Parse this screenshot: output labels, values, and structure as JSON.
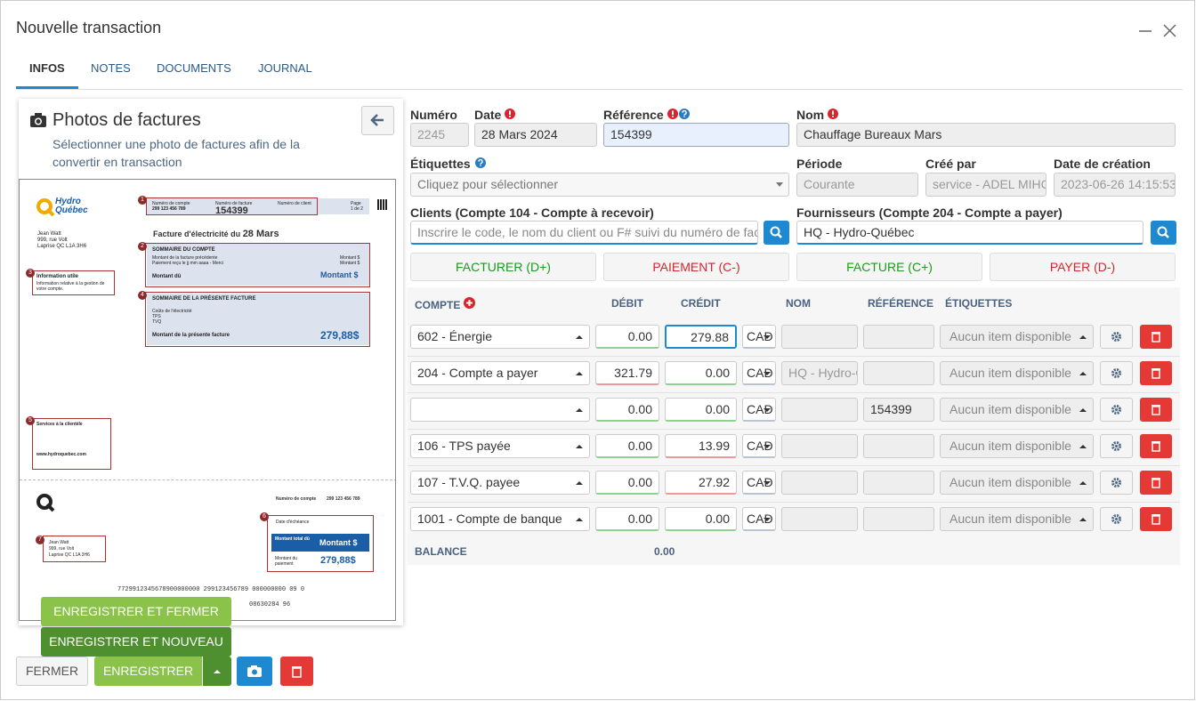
{
  "header": {
    "title": "Nouvelle transaction"
  },
  "tabs": [
    "INFOS",
    "NOTES",
    "DOCUMENTS",
    "JOURNAL"
  ],
  "photo_panel": {
    "title": "Photos de factures",
    "subtitle": "Sélectionner une photo de factures afin de la convertir en transaction",
    "invoice": {
      "logo_line1": "Hydro",
      "logo_line2": "Québec",
      "address": [
        "Jean Watt",
        "999, rue Volt",
        "Laprise QC L1A 3H6"
      ],
      "account_label": "Numéro de compte",
      "account_number": "299 123 456 789",
      "invoice_label": "Numéro de facture",
      "invoice_number": "154399",
      "client_label": "Numéro de client",
      "page_label": "Page",
      "page_value": "1 de 2",
      "heading": "Facture d'électricité du",
      "heading_date": "28 Mars",
      "summary_title": "SOMMAIRE DU COMPTE",
      "summary_lines": [
        "Montant de la facture précédente",
        "Paiement reçu le jj mm aaaa - Merci"
      ],
      "summary_amounts": [
        "Montant $",
        "Montant $"
      ],
      "due_label": "Montant dû",
      "due_amount": "Montant $",
      "current_title": "SOMMAIRE DE LA PRÉSENTE FACTURE",
      "current_lines": [
        "Coûts de l'électricité",
        "TPS",
        "TVQ"
      ],
      "current_total_label": "Montant de la présente facture",
      "current_total": "279,88$",
      "info_title": "Information utile",
      "info_text": "Information relative à la gestion de votre compte.",
      "service_title": "Services à la clientèle",
      "service_web": "www.hydroquebec.com",
      "stub_account_label": "Numéro de compte",
      "stub_account": "299 123 456 789",
      "stub_due_date": "Date d'échéance",
      "stub_total_label": "Montant total dû",
      "stub_total": "Montant $",
      "stub_payment_label": "Montant du paiement",
      "stub_payment": "279,88$",
      "barcode": "7729912345678900000000 299123456789 000000000 09 0",
      "barcode2": "08630284 96",
      "markers": [
        "1",
        "2",
        "3",
        "4",
        "5",
        "6",
        "7"
      ]
    }
  },
  "form": {
    "numero": {
      "label": "Numéro",
      "value": "2245"
    },
    "date": {
      "label": "Date",
      "value": "28 Mars 2024"
    },
    "reference": {
      "label": "Référence",
      "value": "154399"
    },
    "nom": {
      "label": "Nom",
      "value": "Chauffage Bureaux Mars"
    },
    "etiquettes": {
      "label": "Étiquettes",
      "placeholder": "Cliquez pour sélectionner"
    },
    "periode": {
      "label": "Période",
      "value": "Courante"
    },
    "cree_par": {
      "label": "Créé par",
      "value": "service - ADEL MIHC"
    },
    "date_creation": {
      "label": "Date de création",
      "value": "2023-06-26 14:15:53"
    },
    "clients": {
      "label": "Clients (Compte 104 - Compte à recevoir)",
      "placeholder": "Inscrire le code, le nom du client ou F# suivi du numéro de facture"
    },
    "fournisseurs": {
      "label": "Fournisseurs (Compte 204 - Compte a payer)",
      "value": "HQ - Hydro-Québec"
    }
  },
  "actions": [
    "FACTURER (D+)",
    "PAIEMENT (C-)",
    "FACTURE (C+)",
    "PAYER (D-)"
  ],
  "table": {
    "headers": [
      "COMPTE",
      "DÉBIT",
      "CRÉDIT",
      "NOM",
      "RÉFÉRENCE",
      "ÉTIQUETTES"
    ],
    "rows": [
      {
        "compte": "602 - Énergie",
        "debit": "0.00",
        "credit": "279.88",
        "currency": "CAD",
        "etiquettes": "Aucun item disponible"
      },
      {
        "compte": "204 - Compte a payer",
        "debit": "321.79",
        "credit": "0.00",
        "currency": "CAD",
        "nom": "HQ - Hydro-Québec",
        "etiquettes": "Aucun item disponible"
      },
      {
        "debit": "0.00",
        "credit": "0.00",
        "currency": "CAD",
        "reference": "154399",
        "etiquettes": "Aucun item disponible"
      },
      {
        "compte": "106 - TPS payée",
        "debit": "0.00",
        "credit": "13.99",
        "currency": "CAD",
        "etiquettes": "Aucun item disponible"
      },
      {
        "compte": "107 - T.V.Q. payee",
        "debit": "0.00",
        "credit": "27.92",
        "currency": "CAD",
        "etiquettes": "Aucun item disponible"
      },
      {
        "compte": "1001 - Compte de banque",
        "debit": "0.00",
        "credit": "0.00",
        "currency": "CAD",
        "etiquettes": "Aucun item disponible"
      }
    ],
    "balance_label": "BALANCE",
    "balance": "0.00"
  },
  "footer": {
    "save_close": "ENREGISTRER ET FERMER",
    "save_new": "ENREGISTRER ET NOUVEAU",
    "close": "FERMER",
    "save": "ENREGISTRER"
  }
}
